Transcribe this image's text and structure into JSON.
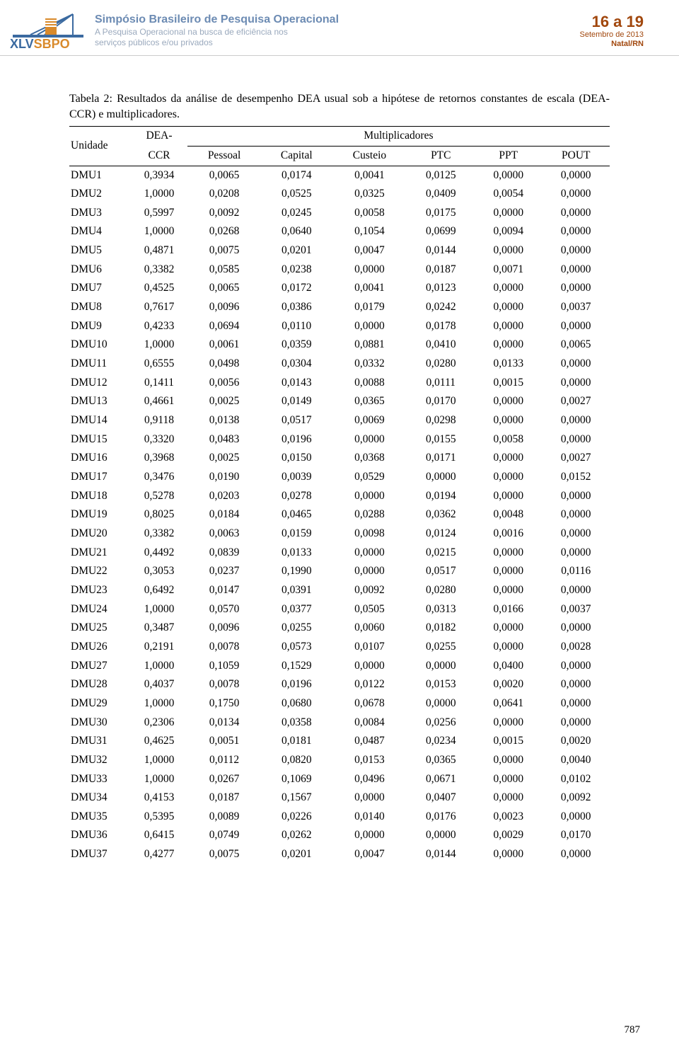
{
  "header": {
    "title": "Simpósio Brasileiro de Pesquisa Operacional",
    "sub1": "A Pesquisa Operacional na busca de eficiência nos",
    "sub2": "serviços públicos e/ou privados",
    "date_big": "16 a 19",
    "date_line2": "Setembro de 2013",
    "date_line3": "Natal/RN",
    "logo_text": "XLVSBPO",
    "logo_color_blue": "#3b6aa0",
    "logo_color_orange": "#d98a2b"
  },
  "caption": "Tabela 2: Resultados da análise de desempenho DEA usual sob a hipótese de retornos constantes de escala (DEA-CCR) e multiplicadores.",
  "table": {
    "head_unit": "Unidade",
    "head_dea_top": "DEA-",
    "head_dea_bot": "CCR",
    "head_mult": "Multiplicadores",
    "columns": [
      "Pessoal",
      "Capital",
      "Custeio",
      "PTC",
      "PPT",
      "POUT"
    ],
    "rows": [
      [
        "DMU1",
        "0,3934",
        "0,0065",
        "0,0174",
        "0,0041",
        "0,0125",
        "0,0000",
        "0,0000"
      ],
      [
        "DMU2",
        "1,0000",
        "0,0208",
        "0,0525",
        "0,0325",
        "0,0409",
        "0,0054",
        "0,0000"
      ],
      [
        "DMU3",
        "0,5997",
        "0,0092",
        "0,0245",
        "0,0058",
        "0,0175",
        "0,0000",
        "0,0000"
      ],
      [
        "DMU4",
        "1,0000",
        "0,0268",
        "0,0640",
        "0,1054",
        "0,0699",
        "0,0094",
        "0,0000"
      ],
      [
        "DMU5",
        "0,4871",
        "0,0075",
        "0,0201",
        "0,0047",
        "0,0144",
        "0,0000",
        "0,0000"
      ],
      [
        "DMU6",
        "0,3382",
        "0,0585",
        "0,0238",
        "0,0000",
        "0,0187",
        "0,0071",
        "0,0000"
      ],
      [
        "DMU7",
        "0,4525",
        "0,0065",
        "0,0172",
        "0,0041",
        "0,0123",
        "0,0000",
        "0,0000"
      ],
      [
        "DMU8",
        "0,7617",
        "0,0096",
        "0,0386",
        "0,0179",
        "0,0242",
        "0,0000",
        "0,0037"
      ],
      [
        "DMU9",
        "0,4233",
        "0,0694",
        "0,0110",
        "0,0000",
        "0,0178",
        "0,0000",
        "0,0000"
      ],
      [
        "DMU10",
        "1,0000",
        "0,0061",
        "0,0359",
        "0,0881",
        "0,0410",
        "0,0000",
        "0,0065"
      ],
      [
        "DMU11",
        "0,6555",
        "0,0498",
        "0,0304",
        "0,0332",
        "0,0280",
        "0,0133",
        "0,0000"
      ],
      [
        "DMU12",
        "0,1411",
        "0,0056",
        "0,0143",
        "0,0088",
        "0,0111",
        "0,0015",
        "0,0000"
      ],
      [
        "DMU13",
        "0,4661",
        "0,0025",
        "0,0149",
        "0,0365",
        "0,0170",
        "0,0000",
        "0,0027"
      ],
      [
        "DMU14",
        "0,9118",
        "0,0138",
        "0,0517",
        "0,0069",
        "0,0298",
        "0,0000",
        "0,0000"
      ],
      [
        "DMU15",
        "0,3320",
        "0,0483",
        "0,0196",
        "0,0000",
        "0,0155",
        "0,0058",
        "0,0000"
      ],
      [
        "DMU16",
        "0,3968",
        "0,0025",
        "0,0150",
        "0,0368",
        "0,0171",
        "0,0000",
        "0,0027"
      ],
      [
        "DMU17",
        "0,3476",
        "0,0190",
        "0,0039",
        "0,0529",
        "0,0000",
        "0,0000",
        "0,0152"
      ],
      [
        "DMU18",
        "0,5278",
        "0,0203",
        "0,0278",
        "0,0000",
        "0,0194",
        "0,0000",
        "0,0000"
      ],
      [
        "DMU19",
        "0,8025",
        "0,0184",
        "0,0465",
        "0,0288",
        "0,0362",
        "0,0048",
        "0,0000"
      ],
      [
        "DMU20",
        "0,3382",
        "0,0063",
        "0,0159",
        "0,0098",
        "0,0124",
        "0,0016",
        "0,0000"
      ],
      [
        "DMU21",
        "0,4492",
        "0,0839",
        "0,0133",
        "0,0000",
        "0,0215",
        "0,0000",
        "0,0000"
      ],
      [
        "DMU22",
        "0,3053",
        "0,0237",
        "0,1990",
        "0,0000",
        "0,0517",
        "0,0000",
        "0,0116"
      ],
      [
        "DMU23",
        "0,6492",
        "0,0147",
        "0,0391",
        "0,0092",
        "0,0280",
        "0,0000",
        "0,0000"
      ],
      [
        "DMU24",
        "1,0000",
        "0,0570",
        "0,0377",
        "0,0505",
        "0,0313",
        "0,0166",
        "0,0037"
      ],
      [
        "DMU25",
        "0,3487",
        "0,0096",
        "0,0255",
        "0,0060",
        "0,0182",
        "0,0000",
        "0,0000"
      ],
      [
        "DMU26",
        "0,2191",
        "0,0078",
        "0,0573",
        "0,0107",
        "0,0255",
        "0,0000",
        "0,0028"
      ],
      [
        "DMU27",
        "1,0000",
        "0,1059",
        "0,1529",
        "0,0000",
        "0,0000",
        "0,0400",
        "0,0000"
      ],
      [
        "DMU28",
        "0,4037",
        "0,0078",
        "0,0196",
        "0,0122",
        "0,0153",
        "0,0020",
        "0,0000"
      ],
      [
        "DMU29",
        "1,0000",
        "0,1750",
        "0,0680",
        "0,0678",
        "0,0000",
        "0,0641",
        "0,0000"
      ],
      [
        "DMU30",
        "0,2306",
        "0,0134",
        "0,0358",
        "0,0084",
        "0,0256",
        "0,0000",
        "0,0000"
      ],
      [
        "DMU31",
        "0,4625",
        "0,0051",
        "0,0181",
        "0,0487",
        "0,0234",
        "0,0015",
        "0,0020"
      ],
      [
        "DMU32",
        "1,0000",
        "0,0112",
        "0,0820",
        "0,0153",
        "0,0365",
        "0,0000",
        "0,0040"
      ],
      [
        "DMU33",
        "1,0000",
        "0,0267",
        "0,1069",
        "0,0496",
        "0,0671",
        "0,0000",
        "0,0102"
      ],
      [
        "DMU34",
        "0,4153",
        "0,0187",
        "0,1567",
        "0,0000",
        "0,0407",
        "0,0000",
        "0,0092"
      ],
      [
        "DMU35",
        "0,5395",
        "0,0089",
        "0,0226",
        "0,0140",
        "0,0176",
        "0,0023",
        "0,0000"
      ],
      [
        "DMU36",
        "0,6415",
        "0,0749",
        "0,0262",
        "0,0000",
        "0,0000",
        "0,0029",
        "0,0170"
      ],
      [
        "DMU37",
        "0,4277",
        "0,0075",
        "0,0201",
        "0,0047",
        "0,0144",
        "0,0000",
        "0,0000"
      ]
    ]
  },
  "page_number": "787"
}
